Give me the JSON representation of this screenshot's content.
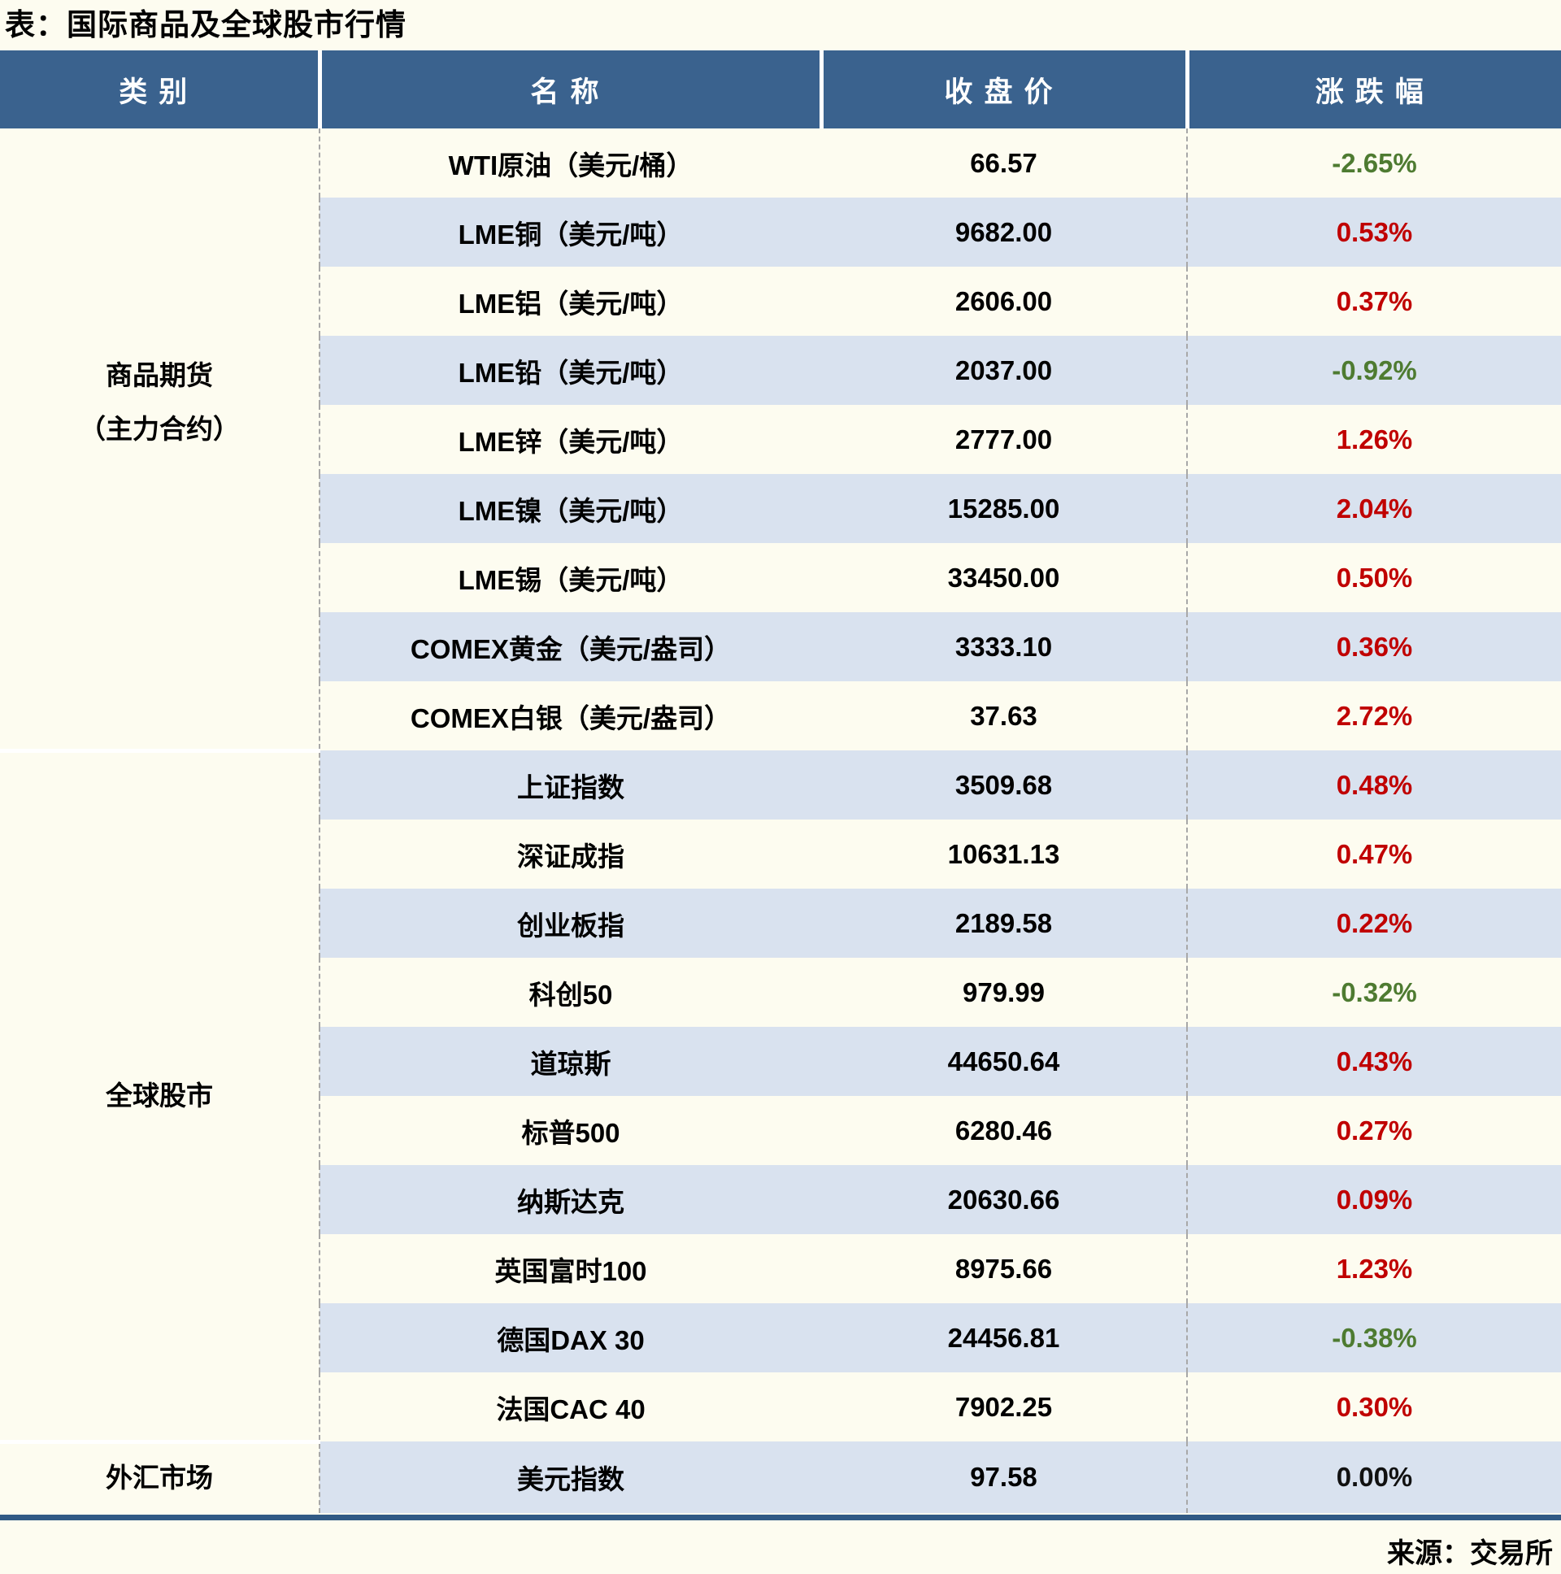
{
  "page_title": "表：国际商品及全球股市行情",
  "source_note": "来源：交易所",
  "colors": {
    "page_bg": "#FDFCF0",
    "header_bg": "#3A628E",
    "header_text": "#FFFFFF",
    "stripe_bg": "#D9E2EF",
    "up_color": "#C00000",
    "down_color": "#4E7B31",
    "flat_color": "#111111",
    "rule_color": "#315A85",
    "dash_color": "#A8A8A8"
  },
  "chart_data": {
    "type": "table",
    "title": "国际商品及全球股市行情",
    "columns": [
      "类别",
      "名称",
      "收盘价",
      "涨跌幅"
    ],
    "legend_note": "red = up, green = down (CN convention)",
    "sections": [
      {
        "category": [
          "商品期货",
          "（主力合约）"
        ],
        "rows": [
          {
            "name": "WTI原油（美元/桶）",
            "close": "66.57",
            "change": "-2.65%",
            "trend": "down"
          },
          {
            "name": "LME铜（美元/吨）",
            "close": "9682.00",
            "change": "0.53%",
            "trend": "up"
          },
          {
            "name": "LME铝（美元/吨）",
            "close": "2606.00",
            "change": "0.37%",
            "trend": "up"
          },
          {
            "name": "LME铅（美元/吨）",
            "close": "2037.00",
            "change": "-0.92%",
            "trend": "down"
          },
          {
            "name": "LME锌（美元/吨）",
            "close": "2777.00",
            "change": "1.26%",
            "trend": "up"
          },
          {
            "name": "LME镍（美元/吨）",
            "close": "15285.00",
            "change": "2.04%",
            "trend": "up"
          },
          {
            "name": "LME锡（美元/吨）",
            "close": "33450.00",
            "change": "0.50%",
            "trend": "up"
          },
          {
            "name": "COMEX黄金（美元/盎司）",
            "close": "3333.10",
            "change": "0.36%",
            "trend": "up"
          },
          {
            "name": "COMEX白银（美元/盎司）",
            "close": "37.63",
            "change": "2.72%",
            "trend": "up"
          }
        ]
      },
      {
        "category": [
          "全球股市"
        ],
        "rows": [
          {
            "name": "上证指数",
            "close": "3509.68",
            "change": "0.48%",
            "trend": "up"
          },
          {
            "name": "深证成指",
            "close": "10631.13",
            "change": "0.47%",
            "trend": "up"
          },
          {
            "name": "创业板指",
            "close": "2189.58",
            "change": "0.22%",
            "trend": "up"
          },
          {
            "name": "科创50",
            "close": "979.99",
            "change": "-0.32%",
            "trend": "down"
          },
          {
            "name": "道琼斯",
            "close": "44650.64",
            "change": "0.43%",
            "trend": "up"
          },
          {
            "name": "标普500",
            "close": "6280.46",
            "change": "0.27%",
            "trend": "up"
          },
          {
            "name": "纳斯达克",
            "close": "20630.66",
            "change": "0.09%",
            "trend": "up"
          },
          {
            "name": "英国富时100",
            "close": "8975.66",
            "change": "1.23%",
            "trend": "up"
          },
          {
            "name": "德国DAX 30",
            "close": "24456.81",
            "change": "-0.38%",
            "trend": "down"
          },
          {
            "name": "法国CAC 40",
            "close": "7902.25",
            "change": "0.30%",
            "trend": "up"
          }
        ]
      },
      {
        "category": [
          "外汇市场"
        ],
        "rows": [
          {
            "name": "美元指数",
            "close": "97.58",
            "change": "0.00%",
            "trend": "flat"
          }
        ]
      }
    ]
  }
}
